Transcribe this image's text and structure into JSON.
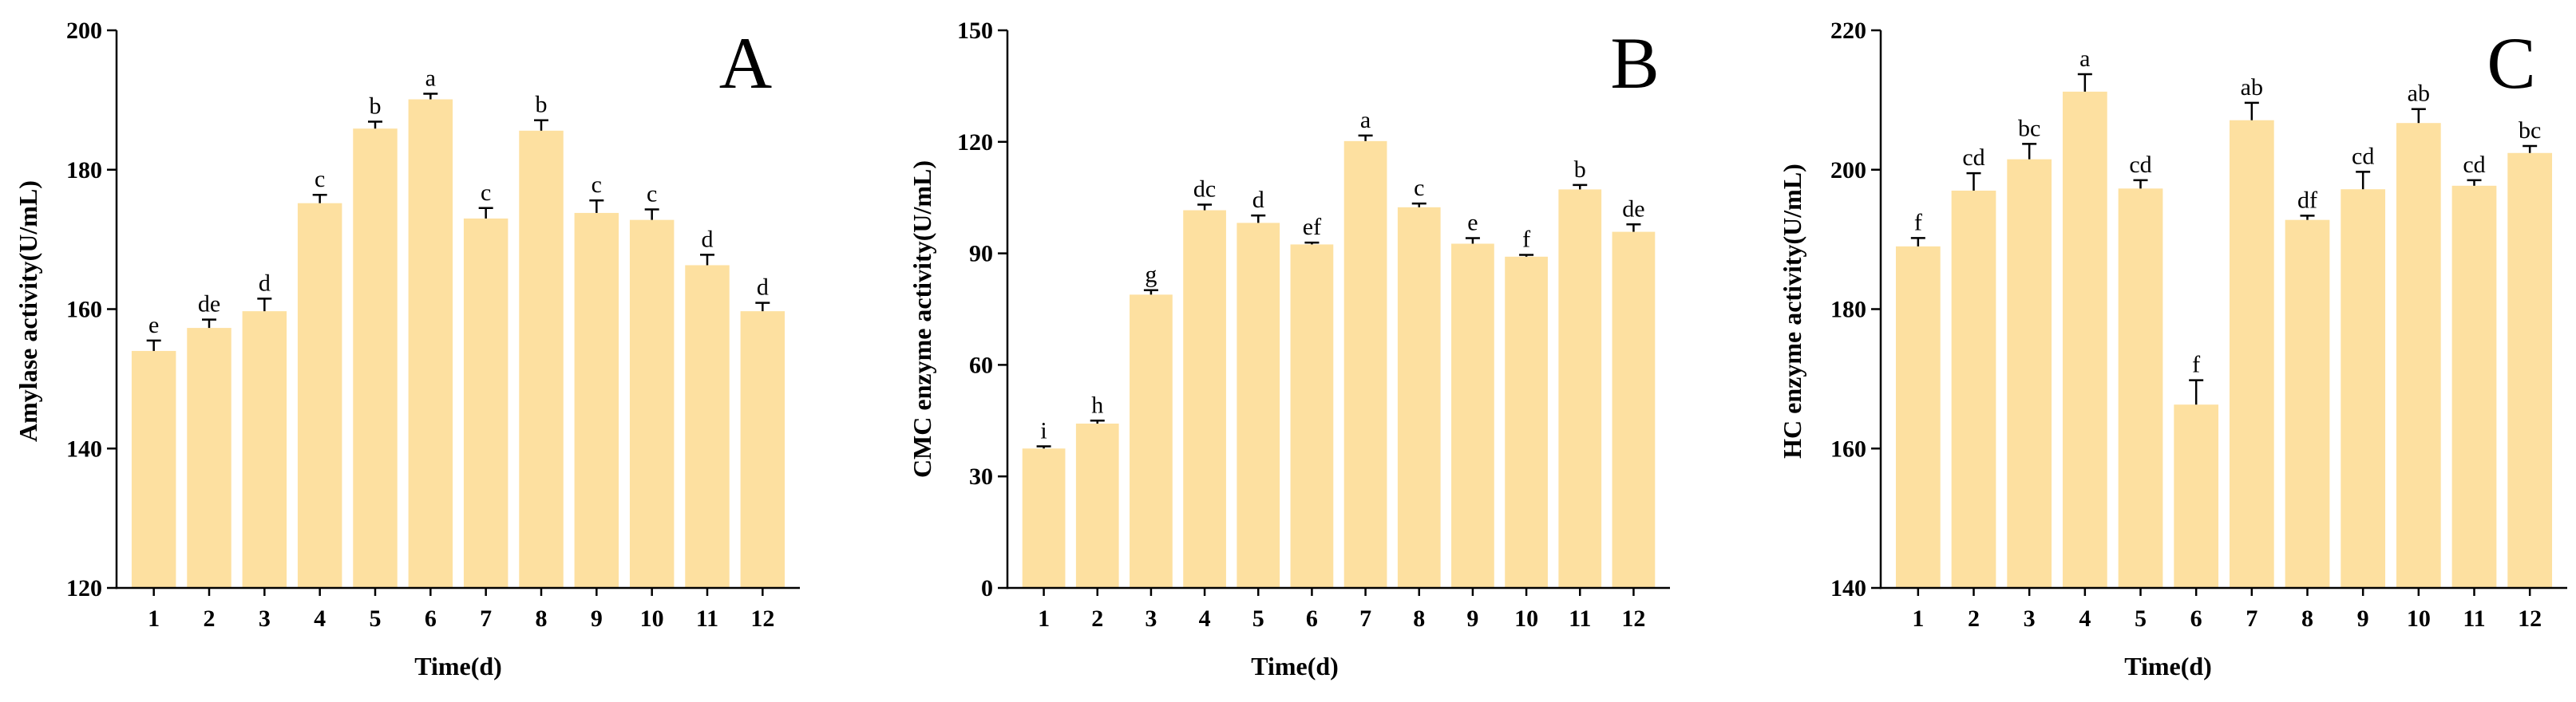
{
  "colors": {
    "bar": "#FDE0A0",
    "axis": "#000000",
    "errorbar": "#000000"
  },
  "chart_data": [
    {
      "type": "bar",
      "panel_label": "A",
      "xlabel": "Time(d)",
      "ylabel": "Amylase activity(U/mL)",
      "ylim": [
        120,
        200
      ],
      "yticks": [
        120,
        140,
        160,
        180,
        200
      ],
      "categories": [
        "1",
        "2",
        "3",
        "4",
        "5",
        "6",
        "7",
        "8",
        "9",
        "10",
        "11",
        "12"
      ],
      "values": [
        154,
        157.3,
        159.7,
        175.2,
        185.9,
        190.1,
        173,
        185.6,
        173.8,
        172.8,
        166.3,
        159.7
      ],
      "errors": [
        1.5,
        1.2,
        1.8,
        1.2,
        1.0,
        0.8,
        1.5,
        1.5,
        1.8,
        1.5,
        1.5,
        1.2
      ],
      "significance_labels": [
        "e",
        "de",
        "d",
        "c",
        "b",
        "a",
        "c",
        "b",
        "c",
        "c",
        "d",
        "d"
      ],
      "grid": false
    },
    {
      "type": "bar",
      "panel_label": "B",
      "xlabel": "Time(d)",
      "ylabel": "CMC enzyme activity(U/mL)",
      "ylim": [
        0,
        150
      ],
      "yticks": [
        0,
        30,
        60,
        90,
        120,
        150
      ],
      "categories": [
        "1",
        "2",
        "3",
        "4",
        "5",
        "6",
        "7",
        "8",
        "9",
        "10",
        "11",
        "12"
      ],
      "values": [
        37.5,
        44.2,
        78.9,
        101.6,
        98.2,
        92.4,
        120.2,
        102.4,
        92.6,
        89.1,
        107.2,
        95.8
      ],
      "errors": [
        0.6,
        0.8,
        1.2,
        1.5,
        2.0,
        0.5,
        1.5,
        1.0,
        1.5,
        0.5,
        1.2,
        2.0
      ],
      "significance_labels": [
        "i",
        "h",
        "g",
        "dc",
        "d",
        "ef",
        "a",
        "c",
        "e",
        "f",
        "b",
        "de"
      ],
      "grid": false
    },
    {
      "type": "bar",
      "panel_label": "C",
      "xlabel": "Time(d)",
      "ylabel": "HC enzyme activity(U/mL)",
      "ylim": [
        140,
        220
      ],
      "yticks": [
        140,
        160,
        180,
        200,
        220
      ],
      "categories": [
        "1",
        "2",
        "3",
        "4",
        "5",
        "6",
        "7",
        "8",
        "9",
        "10",
        "11",
        "12"
      ],
      "values": [
        189,
        197,
        201.5,
        211.2,
        197.3,
        166.3,
        207.1,
        192.8,
        197.2,
        206.7,
        197.7,
        202.4
      ],
      "errors": [
        1.2,
        2.5,
        2.2,
        2.5,
        1.2,
        3.5,
        2.5,
        0.6,
        2.5,
        2.0,
        0.8,
        1.0
      ],
      "significance_labels": [
        "f",
        "cd",
        "bc",
        "a",
        "cd",
        "f",
        "ab",
        "df",
        "cd",
        "ab",
        "cd",
        "bc"
      ],
      "grid": false
    }
  ]
}
